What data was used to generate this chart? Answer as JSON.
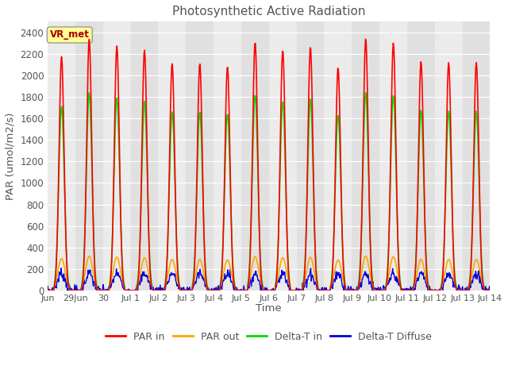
{
  "title": "Photosynthetic Active Radiation",
  "ylabel": "PAR (umol/m2/s)",
  "xlabel": "Time",
  "ylim": [
    0,
    2500
  ],
  "yticks": [
    0,
    200,
    400,
    600,
    800,
    1000,
    1200,
    1400,
    1600,
    1800,
    2000,
    2200,
    2400
  ],
  "colors": {
    "PAR in": "#ff0000",
    "PAR out": "#ffa500",
    "Delta-T in": "#00dd00",
    "Delta-T Diffuse": "#0000dd"
  },
  "peak_par_in": 2350,
  "peak_par_out": 320,
  "peak_delta_t_in": 1850,
  "peak_delta_t_diffuse": 160,
  "annotation_text": "VR_met",
  "annotation_color": "#aa0000",
  "annotation_bg": "#ffff99",
  "annotation_edge": "#999999",
  "axes_bg_light": "#ebebeb",
  "axes_bg_dark": "#e0e0e0",
  "grid_color": "#ffffff",
  "title_color": "#555555",
  "label_color": "#555555",
  "tick_color": "#555555",
  "num_days": 16,
  "xtick_labels": [
    "Jun",
    "29Jun",
    "30",
    "Jul 1",
    "Jul 2",
    "Jul 3",
    "Jul 4",
    "Jul 5",
    "Jul 6",
    "Jul 7",
    "Jul 8",
    "Jul 9",
    "Jul 10",
    "Jul 11",
    "Jul 12",
    "Jul 13",
    "Jul 14"
  ]
}
